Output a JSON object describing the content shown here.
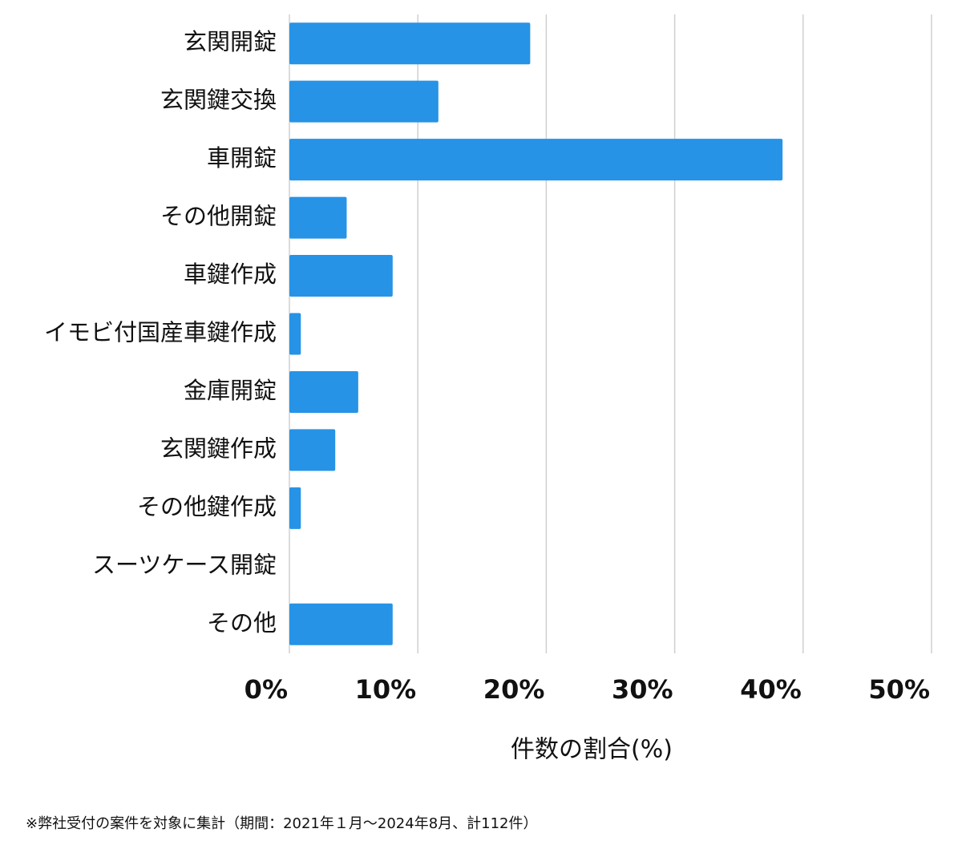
{
  "chart_data": {
    "type": "bar",
    "orientation": "horizontal",
    "categories": [
      "玄関開錠",
      "玄関鍵交換",
      "車開錠",
      "その他開錠",
      "車鍵作成",
      "イモビ付国産車鍵作成",
      "金庫開錠",
      "玄関鍵作成",
      "その他鍵作成",
      "スーツケース開錠",
      "その他"
    ],
    "values": [
      18.75,
      11.6,
      38.4,
      4.46,
      8.04,
      0.89,
      5.36,
      3.57,
      0.89,
      0,
      8.04
    ],
    "color": "#2693e6",
    "xlim": [
      0,
      50
    ],
    "xticks": [
      {
        "value": 0,
        "label": "0%"
      },
      {
        "value": 10,
        "label": "10%"
      },
      {
        "value": 20,
        "label": "20%"
      },
      {
        "value": 30,
        "label": "30%"
      },
      {
        "value": 40,
        "label": "40%"
      },
      {
        "value": 50,
        "label": "50%"
      }
    ],
    "grid": true,
    "x_label": "件数の割合(%)",
    "footnote": "※弊社受付の案件を対象に集計（期間：2021年１月～2024年8月、計112件）"
  }
}
